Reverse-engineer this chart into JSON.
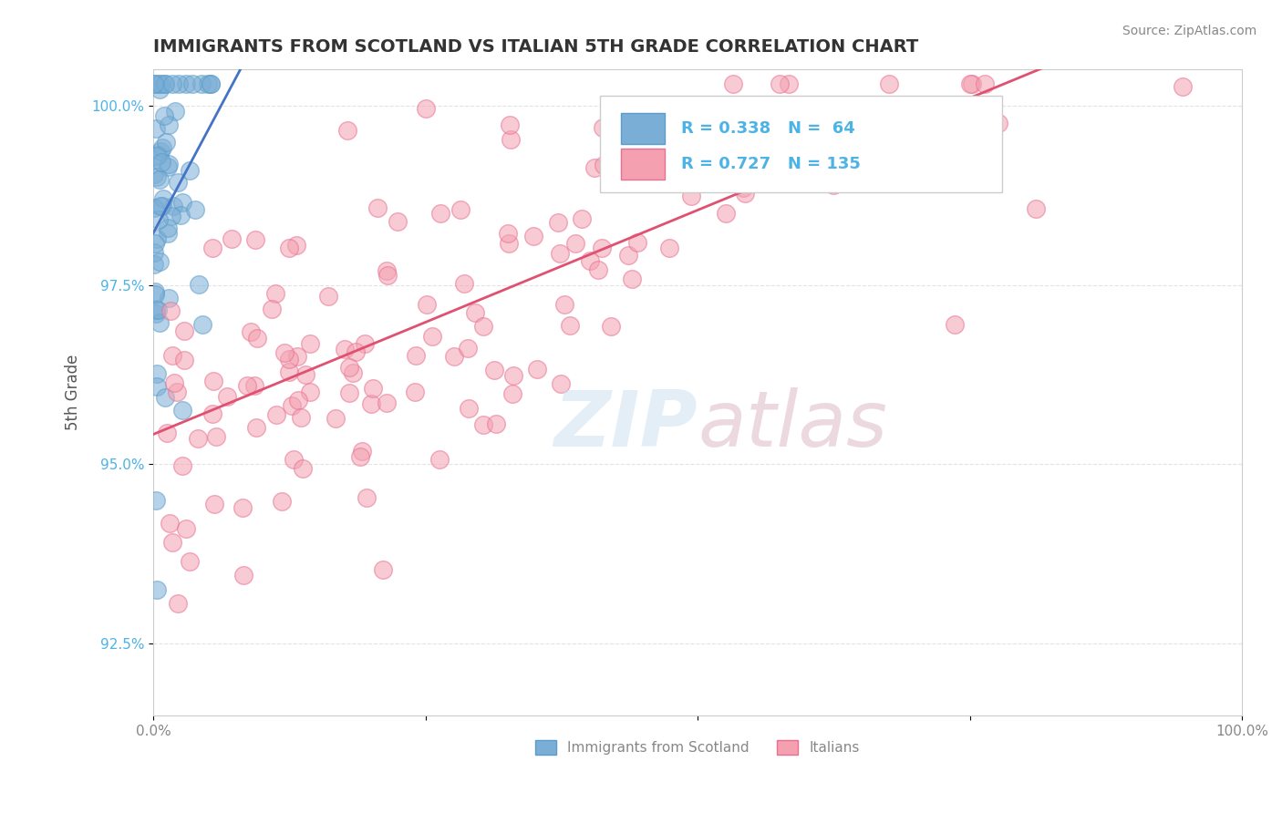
{
  "title": "IMMIGRANTS FROM SCOTLAND VS ITALIAN 5TH GRADE CORRELATION CHART",
  "source_text": "Source: ZipAtlas.com",
  "xlabel": "",
  "ylabel": "5th Grade",
  "xlim": [
    0.0,
    1.0
  ],
  "ylim": [
    0.915,
    1.005
  ],
  "x_ticks": [
    0.0,
    0.25,
    0.5,
    0.75,
    1.0
  ],
  "x_tick_labels": [
    "0.0%",
    "",
    "",
    "",
    "100.0%"
  ],
  "y_ticks": [
    0.925,
    0.95,
    0.975,
    1.0
  ],
  "y_tick_labels": [
    "92.5%",
    "95.0%",
    "97.5%",
    "100.0%"
  ],
  "scotland_color": "#7aaed6",
  "scotland_edge": "#5b9cc9",
  "italian_color": "#f4a0b0",
  "italian_edge": "#e87090",
  "scotland_R": 0.338,
  "scotland_N": 64,
  "italian_R": 0.727,
  "italian_N": 135,
  "scotland_line_color": "#4472c4",
  "italian_line_color": "#e05070",
  "watermark_zip": "ZIP",
  "watermark_atlas": "atlas",
  "legend_scotland": "Immigrants from Scotland",
  "legend_italian": "Italians",
  "background_color": "#ffffff",
  "grid_color": "#dddddd",
  "title_color": "#333333",
  "axis_label_color": "#555555",
  "tick_label_color": "#888888",
  "tick_color_blue": "#4db3e6"
}
